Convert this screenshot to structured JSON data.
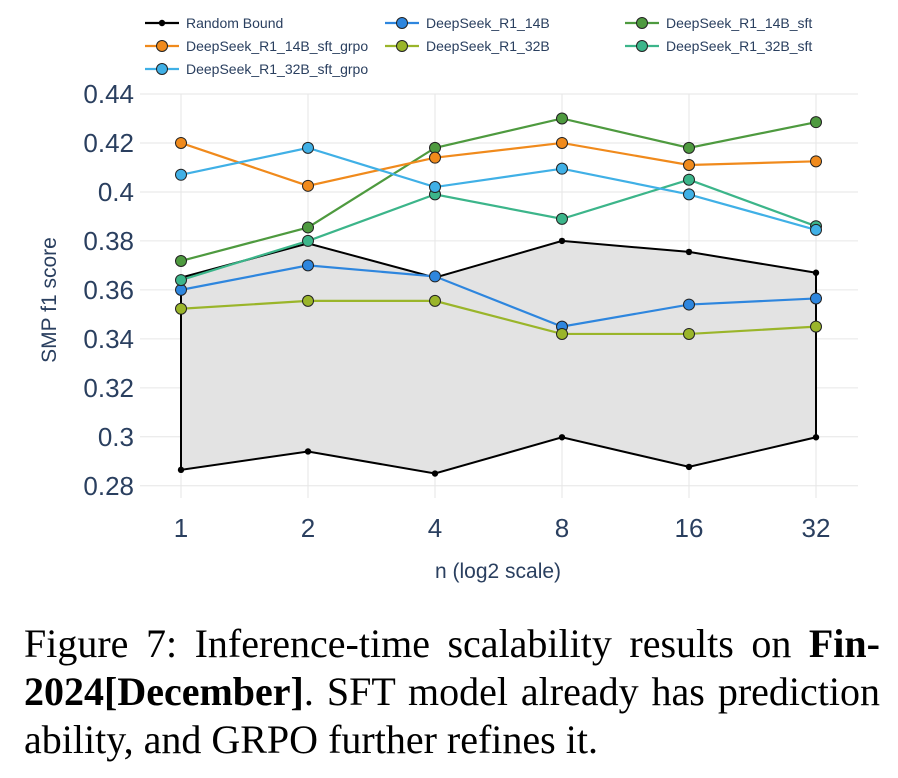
{
  "chart_data": {
    "type": "line",
    "xlabel": "n (log2 scale)",
    "ylabel": "SMP f1 score",
    "x": [
      1,
      2,
      4,
      8,
      16,
      32
    ],
    "x_scale": "log2",
    "xtick_labels": [
      "1",
      "2",
      "4",
      "8",
      "16",
      "32"
    ],
    "ylim": [
      0.275,
      0.44
    ],
    "yticks": [
      0.28,
      0.3,
      0.32,
      0.34,
      0.36,
      0.38,
      0.4,
      0.42,
      0.44
    ],
    "ytick_labels": [
      "0.28",
      "0.3",
      "0.32",
      "0.34",
      "0.36",
      "0.38",
      "0.4",
      "0.42",
      "0.44"
    ],
    "grid": true,
    "legend_position": "top",
    "band": {
      "name": "Random Bound",
      "upper": [
        0.365,
        0.379,
        0.365,
        0.38,
        0.3755,
        0.367
      ],
      "lower": [
        0.2865,
        0.294,
        0.285,
        0.2998,
        0.2877,
        0.2998
      ],
      "color": "#000000",
      "fill": "#e3e3e3"
    },
    "series": [
      {
        "name": "DeepSeek_R1_14B",
        "color": "#2e86de",
        "values": [
          0.36,
          0.37,
          0.3655,
          0.345,
          0.354,
          0.3565
        ]
      },
      {
        "name": "DeepSeek_R1_14B_sft",
        "color": "#4e9a3f",
        "values": [
          0.3718,
          0.3855,
          0.418,
          0.43,
          0.418,
          0.4285
        ]
      },
      {
        "name": "DeepSeek_R1_14B_sft_grpo",
        "color": "#f08a1c",
        "values": [
          0.42,
          0.4025,
          0.414,
          0.42,
          0.411,
          0.4125
        ]
      },
      {
        "name": "DeepSeek_R1_32B",
        "color": "#9ab52a",
        "values": [
          0.3523,
          0.3555,
          0.3555,
          0.342,
          0.342,
          0.345
        ]
      },
      {
        "name": "DeepSeek_R1_32B_sft",
        "color": "#3cb58a",
        "values": [
          0.364,
          0.38,
          0.399,
          0.389,
          0.405,
          0.386
        ]
      },
      {
        "name": "DeepSeek_R1_32B_sft_grpo",
        "color": "#40b0e6",
        "values": [
          0.407,
          0.418,
          0.402,
          0.4095,
          0.399,
          0.3845
        ]
      }
    ]
  },
  "caption": {
    "prefix": "Figure 7:  Inference-time scalability results on ",
    "bold": "Fin-2024[December]",
    "suffix": ".  SFT model already has prediction ability, and GRPO further refines it."
  }
}
